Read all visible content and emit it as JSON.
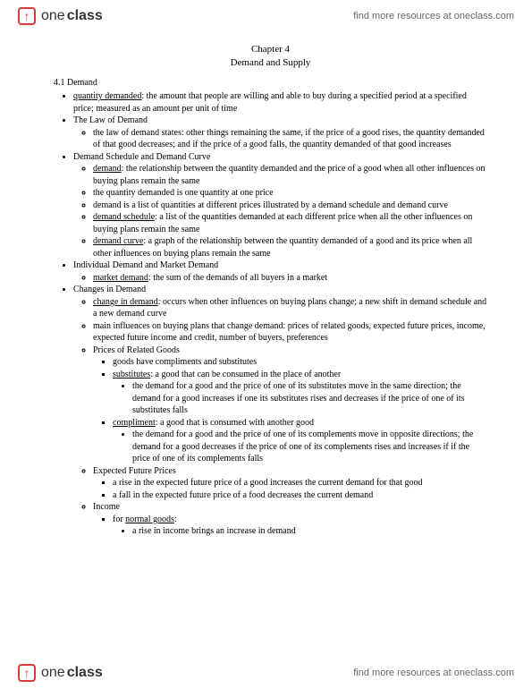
{
  "brand": {
    "one": "one",
    "class": "class",
    "icon_glyph": "↑"
  },
  "header_link": "find more resources at oneclass.com",
  "footer_link": "find more resources at oneclass.com",
  "chapter": {
    "title": "Chapter 4",
    "subtitle": "Demand and Supply"
  },
  "section_heading": "4.1 Demand",
  "b1": {
    "qd_term": "quantity demanded",
    "qd_def": ": the amount that people are willing and able to buy during a specified period at a specified price; measured as an amount per unit of time",
    "law_head": "The Law of Demand",
    "law_text": "the law of demand states: other things remaining the same, if the price of a good rises, the quantity demanded of that good decreases; and if the price of a good falls, the quantity demanded of that good increases",
    "ds_head": "Demand Schedule and Demand Curve",
    "demand_term": "demand",
    "demand_def": ": the relationship between the quantity demanded and the price of a good when all other influences on buying plans remain the same",
    "qd_one": "the quantity demanded is one quantity at one price",
    "demand_list": "demand is a list of quantities at different prices illustrated by a demand schedule and demand curve",
    "dsched_term": "demand schedule",
    "dsched_def": ": a list of the quantities demanded at each different price when all the other influences on buying plans remain the same",
    "dcurve_term": "demand curve",
    "dcurve_def": ": a graph of the relationship between the quantity demanded of a good and its price when all other influences on buying plans remain the same",
    "ind_head": "Individual Demand and Market Demand",
    "md_term": "market demand",
    "md_def": ": the sum of the demands of all buyers in a market",
    "changes_head": "Changes in Demand",
    "cid_term": "change in demand",
    "cid_def": ": occurs when other influences on buying plans change; a new shift in demand schedule and a new demand curve",
    "influences": "main influences on buying plans that change demand: prices of related goods, expected future prices, income, expected future income and credit, number of buyers, preferences",
    "prg_head": "Prices of Related Goods",
    "goods_have": "goods have compliments and substitutes",
    "sub_term": "substitutes",
    "sub_def": ": a good that can be consumed in the place of another",
    "sub_detail": "the demand for a good and the price of one of its substitutes move in the same direction; the demand for a good increases if one its substitutes rises and decreases if the price of one of its substitutes falls",
    "comp_term": "compliment",
    "comp_def": ": a good that is consumed with another good",
    "comp_detail": "the demand for a good and the price of one of its complements move in opposite directions; the demand for a good decreases if the price of one of its complements rises and increases if if the price of one of its complements falls",
    "efp_head": "Expected Future Prices",
    "efp_rise": "a rise in the expected future price of a good increases the current demand for that good",
    "efp_fall": "a fall in the expected future price of a food decreases the current demand",
    "inc_head": "Income",
    "ng_prefix": "for ",
    "ng_term": "normal goods",
    "ng_suffix": ":",
    "ng_rise": "a rise in income brings an increase in demand"
  },
  "colors": {
    "brand_red": "#d93b3b",
    "text": "#000000",
    "muted": "#666666",
    "bg": "#ffffff"
  }
}
